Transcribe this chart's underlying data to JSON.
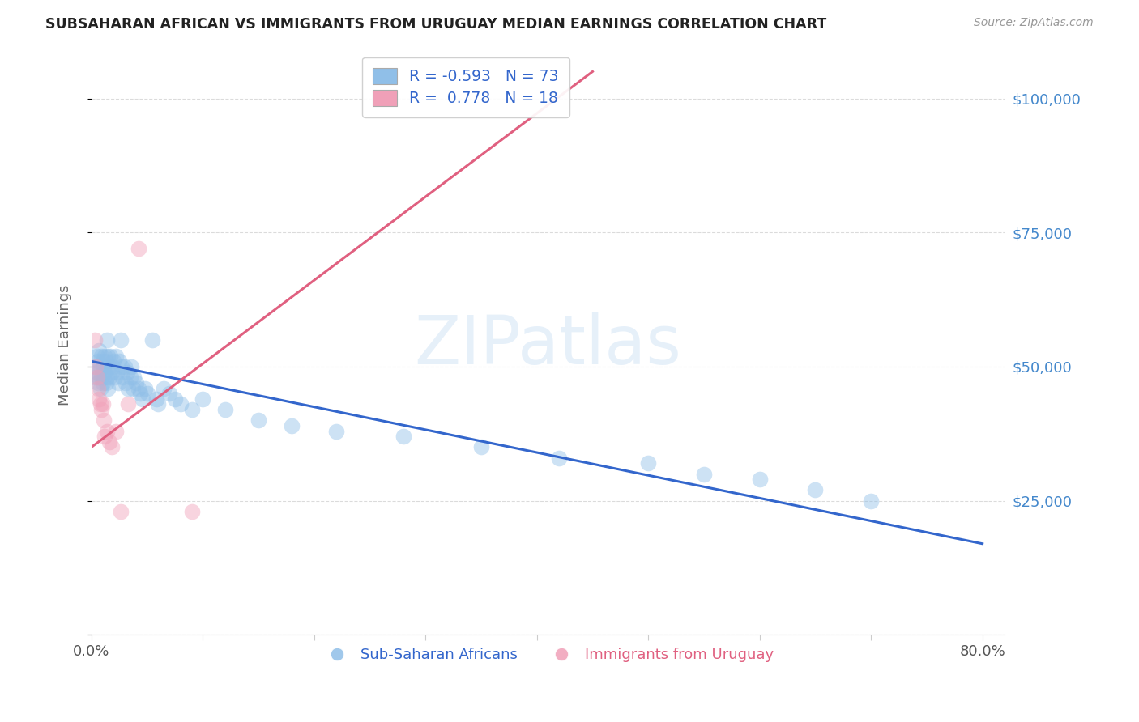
{
  "title": "SUBSAHARAN AFRICAN VS IMMIGRANTS FROM URUGUAY MEDIAN EARNINGS CORRELATION CHART",
  "source": "Source: ZipAtlas.com",
  "ylabel": "Median Earnings",
  "yticks": [
    0,
    25000,
    50000,
    75000,
    100000
  ],
  "ytick_labels": [
    "",
    "$25,000",
    "$50,000",
    "$75,000",
    "$100,000"
  ],
  "watermark": "ZIPatlas",
  "legend_r_blue": "R = -0.593",
  "legend_n_blue": "N = 73",
  "legend_r_pink": "R =  0.778",
  "legend_n_pink": "N = 18",
  "legend_sub_labels": [
    "Sub-Saharan Africans",
    "Immigrants from Uruguay"
  ],
  "blue_scatter_x": [
    0.003,
    0.004,
    0.005,
    0.005,
    0.006,
    0.006,
    0.007,
    0.007,
    0.008,
    0.008,
    0.009,
    0.009,
    0.01,
    0.01,
    0.011,
    0.011,
    0.012,
    0.012,
    0.013,
    0.013,
    0.014,
    0.014,
    0.015,
    0.015,
    0.016,
    0.016,
    0.017,
    0.018,
    0.019,
    0.02,
    0.021,
    0.022,
    0.023,
    0.024,
    0.025,
    0.026,
    0.027,
    0.028,
    0.03,
    0.031,
    0.032,
    0.033,
    0.035,
    0.036,
    0.037,
    0.038,
    0.04,
    0.042,
    0.044,
    0.046,
    0.048,
    0.05,
    0.055,
    0.058,
    0.06,
    0.065,
    0.07,
    0.075,
    0.08,
    0.09,
    0.1,
    0.12,
    0.15,
    0.18,
    0.22,
    0.28,
    0.35,
    0.42,
    0.5,
    0.55,
    0.6,
    0.65,
    0.7
  ],
  "blue_scatter_y": [
    48000,
    50000,
    52000,
    49000,
    51000,
    47000,
    53000,
    48000,
    50000,
    46000,
    52000,
    48000,
    51000,
    47000,
    50000,
    48000,
    52000,
    49000,
    51000,
    47000,
    55000,
    48000,
    52000,
    46000,
    50000,
    48000,
    52000,
    49000,
    50000,
    51000,
    48000,
    52000,
    49000,
    47000,
    51000,
    55000,
    50000,
    48000,
    50000,
    47000,
    49000,
    46000,
    48000,
    50000,
    46000,
    48000,
    47000,
    46000,
    45000,
    44000,
    46000,
    45000,
    55000,
    44000,
    43000,
    46000,
    45000,
    44000,
    43000,
    42000,
    44000,
    42000,
    40000,
    39000,
    38000,
    37000,
    35000,
    33000,
    32000,
    30000,
    29000,
    27000,
    25000
  ],
  "pink_scatter_x": [
    0.003,
    0.004,
    0.005,
    0.006,
    0.007,
    0.008,
    0.009,
    0.01,
    0.011,
    0.012,
    0.014,
    0.016,
    0.018,
    0.022,
    0.026,
    0.033,
    0.042,
    0.09
  ],
  "pink_scatter_y": [
    55000,
    50000,
    48000,
    46000,
    44000,
    43000,
    42000,
    43000,
    40000,
    37000,
    38000,
    36000,
    35000,
    38000,
    23000,
    43000,
    72000,
    23000
  ],
  "blue_line_x": [
    0.0,
    0.8
  ],
  "blue_line_y": [
    51000,
    17000
  ],
  "pink_line_x": [
    0.0,
    0.45
  ],
  "pink_line_y": [
    35000,
    105000
  ],
  "scatter_size": 200,
  "scatter_alpha": 0.45,
  "blue_color": "#90bfe8",
  "pink_color": "#f0a0b8",
  "blue_line_color": "#3366cc",
  "pink_line_color": "#e06080",
  "background_color": "#ffffff",
  "title_color": "#222222",
  "axis_color": "#cccccc",
  "grid_color": "#cccccc",
  "yaxis_label_color": "#4488cc",
  "xlim": [
    0.0,
    0.82
  ],
  "ylim": [
    0,
    108000
  ]
}
